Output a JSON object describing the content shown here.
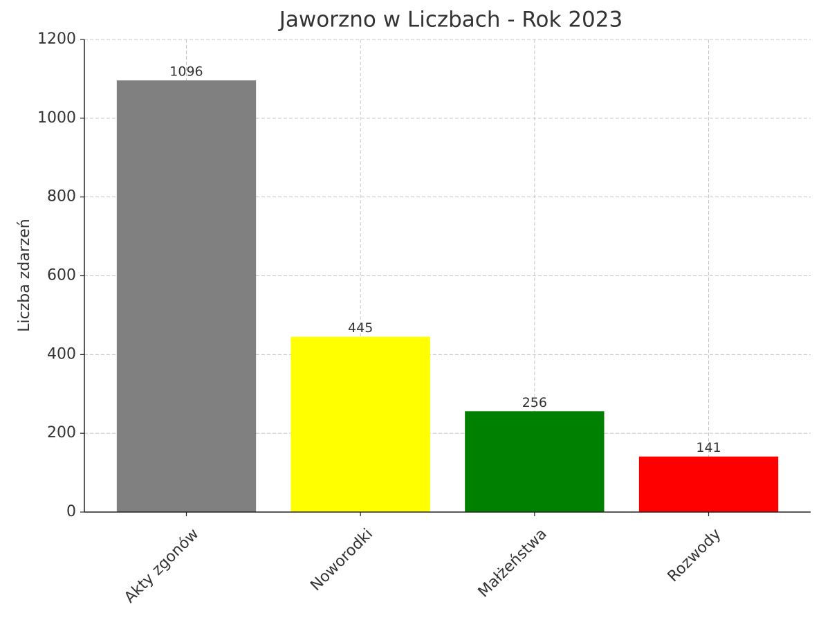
{
  "chart_data": {
    "type": "bar",
    "title": "Jaworzno w Liczbach - Rok 2023",
    "ylabel": "Liczba zdarzeń",
    "categories": [
      "Akty zgonów",
      "Noworodki",
      "Małżeństwa",
      "Rozwody"
    ],
    "values": [
      1096,
      445,
      256,
      141
    ],
    "colors": [
      "#808080",
      "#ffff00",
      "#008000",
      "#ff0000"
    ],
    "ylim": [
      0,
      1200
    ],
    "yticks": [
      0,
      200,
      400,
      600,
      800,
      1000,
      1200
    ],
    "grid": true
  }
}
